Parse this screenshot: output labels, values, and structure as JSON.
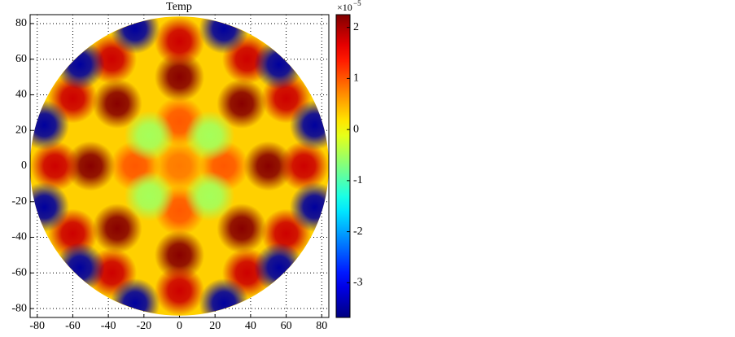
{
  "chart_data": {
    "type": "heatmap",
    "title": "Temp",
    "colormap": "jet",
    "grid": true,
    "xlim": [
      -84,
      84
    ],
    "ylim": [
      -85,
      85
    ],
    "xticks": [
      -80,
      -60,
      -40,
      -20,
      0,
      20,
      40,
      60,
      80
    ],
    "yticks": [
      -80,
      -60,
      -40,
      -20,
      0,
      20,
      40,
      60,
      80
    ],
    "domain_radius": 84,
    "background_value": 0.3,
    "peaks": {
      "x": [
        0,
        0,
        50,
        -50,
        35,
        -35,
        35,
        -35,
        0,
        0,
        70,
        -70,
        60,
        -60,
        60,
        -60,
        38,
        -38,
        38,
        -38,
        0,
        0,
        25,
        -25,
        0,
        56,
        -56,
        56,
        -56,
        76,
        -76,
        76,
        -76,
        25,
        -25,
        25,
        -25,
        17,
        -17,
        17,
        -17
      ],
      "y": [
        50,
        -50,
        0,
        0,
        35,
        35,
        -35,
        -35,
        70,
        -70,
        0,
        0,
        38,
        38,
        -38,
        -38,
        60,
        60,
        -60,
        -60,
        25,
        -25,
        0,
        0,
        0,
        57,
        57,
        -57,
        -57,
        23,
        23,
        -23,
        -23,
        77,
        77,
        -77,
        -77,
        17,
        17,
        -17,
        -17
      ],
      "values": [
        2.2,
        2.2,
        2.2,
        2.2,
        2.2,
        2.2,
        2.2,
        2.2,
        1.8,
        1.8,
        1.8,
        1.8,
        1.8,
        1.8,
        1.8,
        1.8,
        1.8,
        1.8,
        1.8,
        1.8,
        1.0,
        1.0,
        1.0,
        1.0,
        0.8,
        -3.5,
        -3.5,
        -3.5,
        -3.5,
        -3.5,
        -3.5,
        -3.5,
        -3.5,
        -3.5,
        -3.5,
        -3.5,
        -3.5,
        -0.5,
        -0.5,
        -0.5,
        -0.5
      ]
    },
    "clim": [
      -3.68,
      2.25
    ],
    "cticks": [
      -3,
      -2,
      -1,
      0,
      1,
      2
    ],
    "colorbar_multiplier": "×10",
    "colorbar_exponent": "−5"
  }
}
